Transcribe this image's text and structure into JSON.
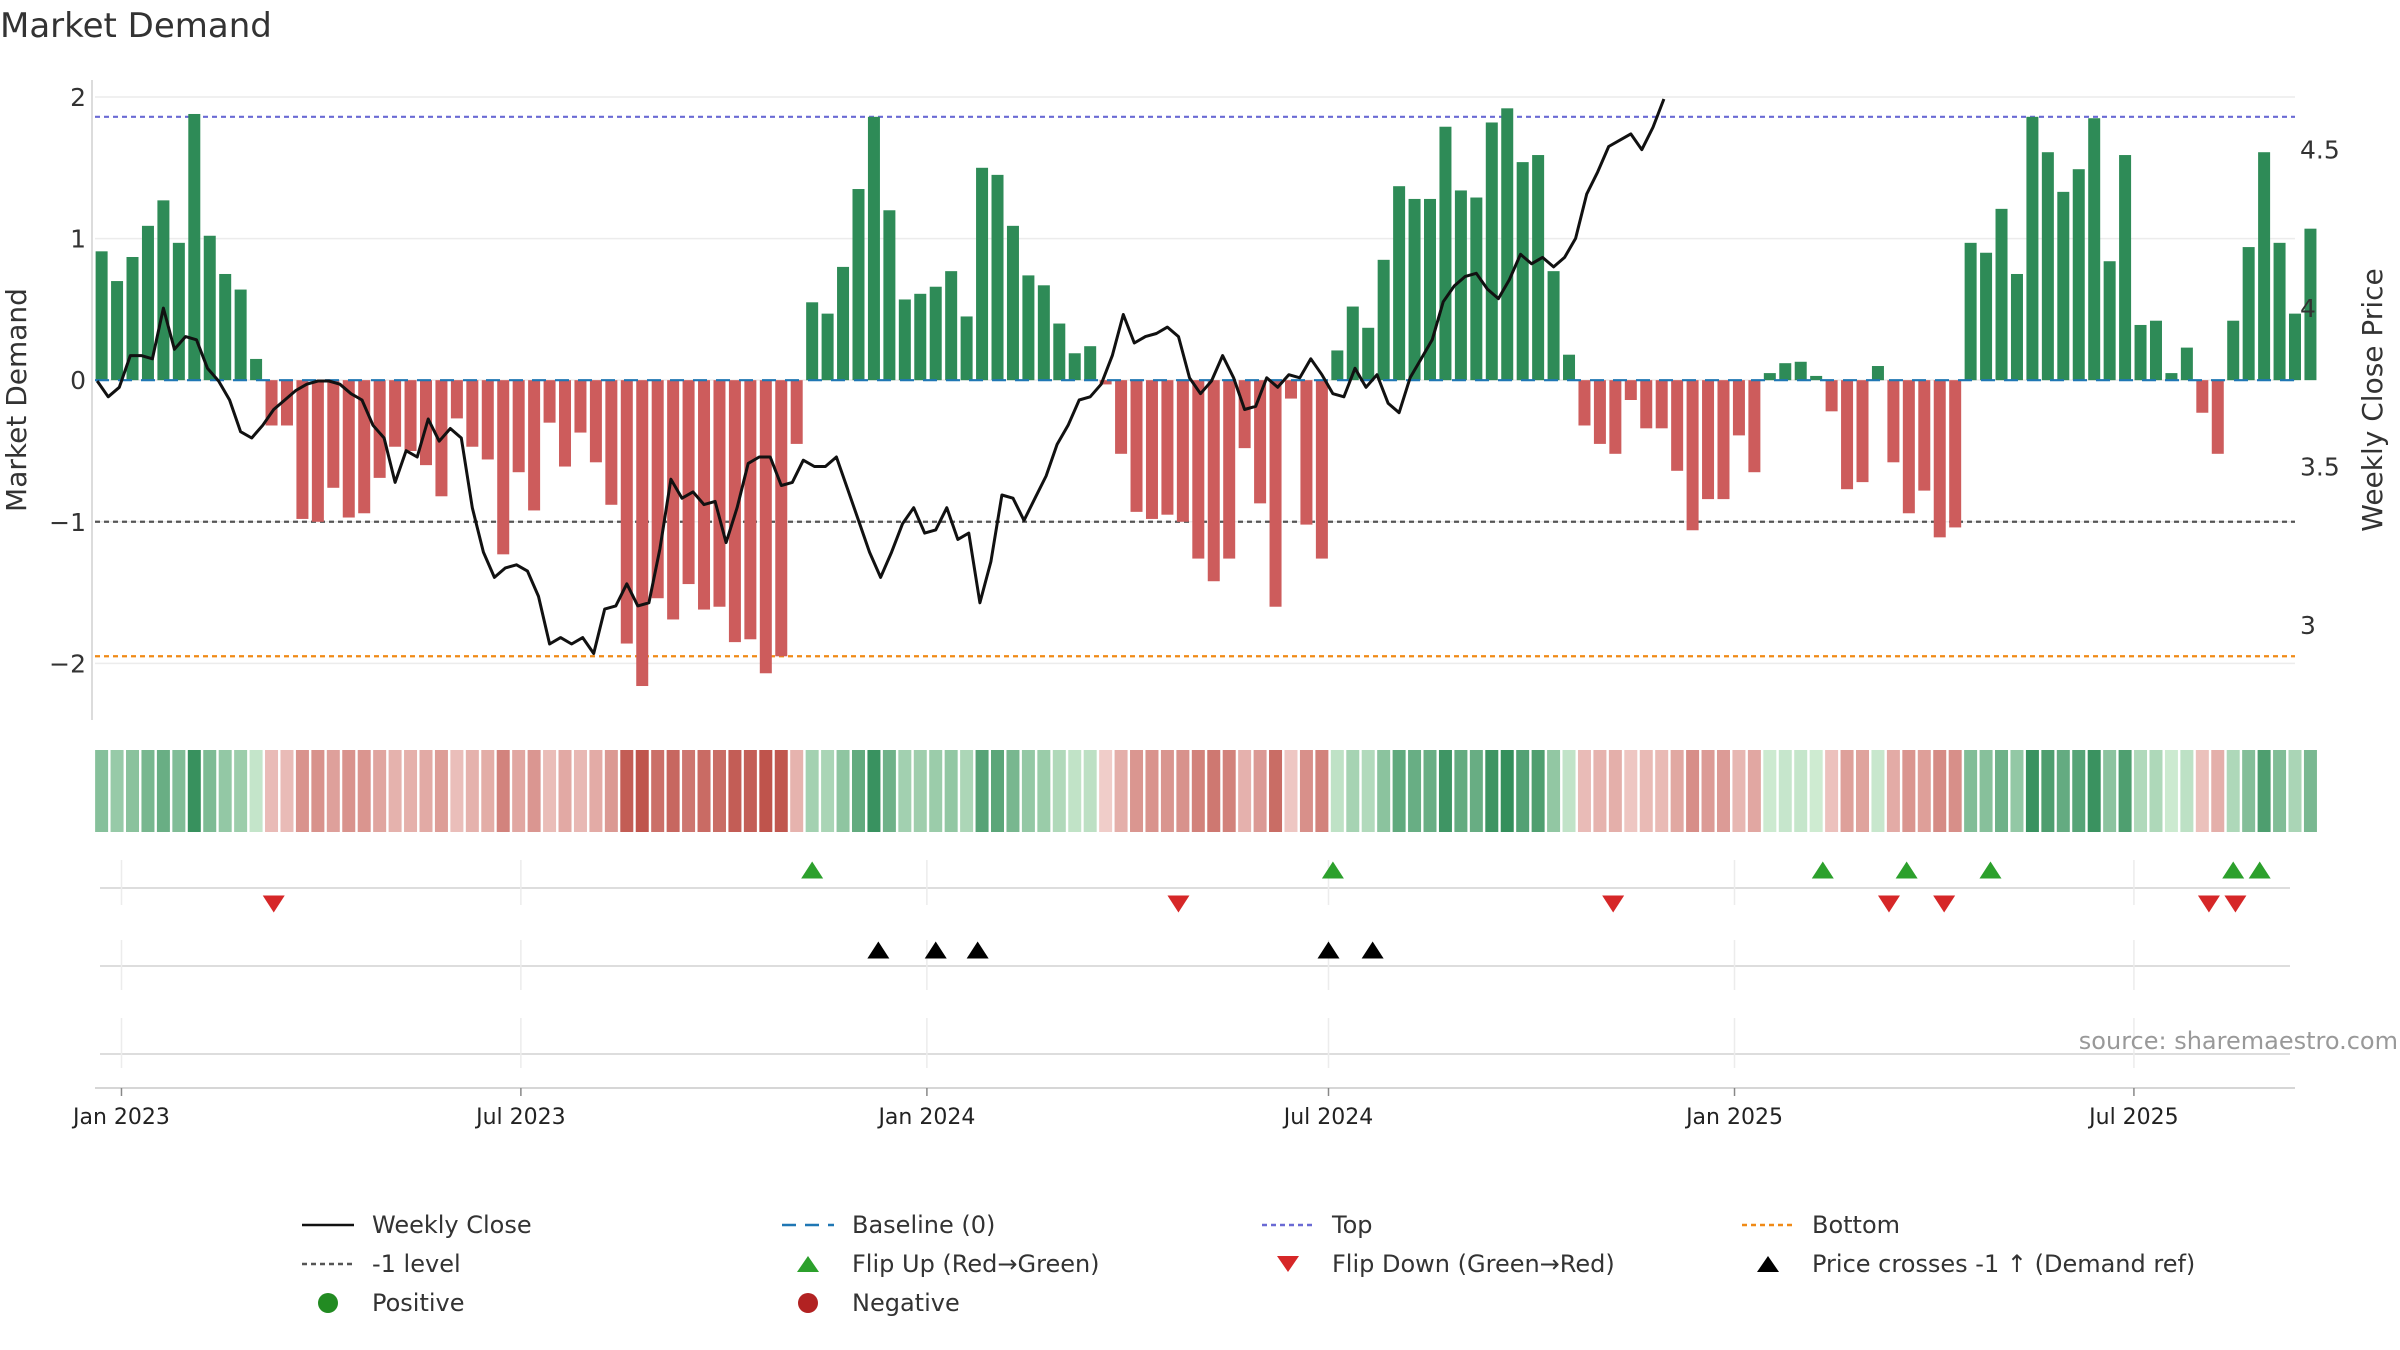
{
  "chart_data": {
    "type": "bar",
    "title": "Market Demand",
    "ylabel": "Market Demand",
    "y2label": "Weekly Close Price",
    "ylim": [
      -2.4,
      2.12
    ],
    "y2lim": [
      2.7,
      4.72
    ],
    "yticks": [
      2,
      1,
      0,
      -1,
      -2
    ],
    "ytick_labels": [
      "2",
      "1",
      "0",
      "−1",
      "−2"
    ],
    "y2ticks": [
      4.5,
      4,
      3.5,
      3
    ],
    "y2tick_labels": [
      "4.5",
      "4",
      "3.5",
      "3"
    ],
    "x_start": "2022-12-20",
    "x_end": "2025-09-12",
    "bar_dates_start": "2022-12-23",
    "bar_interval_days": 7,
    "xticks": [
      {
        "date": "2023-01-01",
        "label": "Jan 2023"
      },
      {
        "date": "2023-07-01",
        "label": "Jul 2023"
      },
      {
        "date": "2024-01-01",
        "label": "Jan 2024"
      },
      {
        "date": "2024-07-01",
        "label": "Jul 2024"
      },
      {
        "date": "2025-01-01",
        "label": "Jan 2025"
      },
      {
        "date": "2025-07-01",
        "label": "Jul 2025"
      }
    ],
    "reference_lines": {
      "top": 1.86,
      "bottom": -1.95,
      "minus_one": -1,
      "baseline": 0
    },
    "demand": [
      0.91,
      0.7,
      0.87,
      1.09,
      1.27,
      0.97,
      1.88,
      1.02,
      0.75,
      0.64,
      0.15,
      -0.32,
      -0.32,
      -0.98,
      -1.0,
      -0.76,
      -0.97,
      -0.94,
      -0.69,
      -0.47,
      -0.5,
      -0.6,
      -0.82,
      -0.27,
      -0.47,
      -0.56,
      -1.23,
      -0.65,
      -0.92,
      -0.3,
      -0.61,
      -0.37,
      -0.58,
      -0.88,
      -1.86,
      -2.16,
      -1.54,
      -1.69,
      -1.44,
      -1.62,
      -1.6,
      -1.85,
      -1.83,
      -2.07,
      -1.95,
      -0.45,
      0.55,
      0.47,
      0.8,
      1.35,
      1.86,
      1.2,
      0.57,
      0.61,
      0.66,
      0.77,
      0.45,
      1.5,
      1.45,
      1.09,
      0.74,
      0.67,
      0.4,
      0.19,
      0.24,
      -0.03,
      -0.52,
      -0.93,
      -0.98,
      -0.95,
      -1.0,
      -1.26,
      -1.42,
      -1.26,
      -0.48,
      -0.87,
      -1.6,
      -0.13,
      -1.02,
      -1.26,
      0.21,
      0.52,
      0.37,
      0.85,
      1.37,
      1.28,
      1.28,
      1.79,
      1.34,
      1.29,
      1.82,
      1.92,
      1.54,
      1.59,
      0.77,
      0.18,
      -0.32,
      -0.45,
      -0.52,
      -0.14,
      -0.34,
      -0.34,
      -0.64,
      -1.06,
      -0.84,
      -0.84,
      -0.39,
      -0.65,
      0.05,
      0.12,
      0.13,
      0.03,
      -0.22,
      -0.77,
      -0.72,
      0.1,
      -0.58,
      -0.94,
      -0.78,
      -1.11,
      -1.04,
      0.97,
      0.9,
      1.21,
      0.75,
      1.86,
      1.61,
      1.33,
      1.49,
      1.85,
      0.84,
      1.59,
      0.39,
      0.42,
      0.05,
      0.23,
      -0.23,
      -0.52,
      0.42,
      0.94,
      1.61,
      0.97,
      0.47,
      1.07
    ],
    "close_dates_start": "2022-12-21",
    "close_interval_days": 5,
    "close": [
      3.77,
      3.72,
      3.75,
      3.85,
      3.85,
      3.84,
      4.0,
      3.87,
      3.91,
      3.9,
      3.81,
      3.77,
      3.71,
      3.61,
      3.59,
      3.63,
      3.68,
      3.71,
      3.74,
      3.76,
      3.77,
      3.77,
      3.76,
      3.73,
      3.71,
      3.63,
      3.59,
      3.45,
      3.55,
      3.53,
      3.65,
      3.58,
      3.62,
      3.59,
      3.37,
      3.23,
      3.15,
      3.18,
      3.19,
      3.17,
      3.09,
      2.94,
      2.96,
      2.94,
      2.96,
      2.91,
      3.05,
      3.06,
      3.13,
      3.06,
      3.07,
      3.24,
      3.46,
      3.4,
      3.42,
      3.38,
      3.39,
      3.26,
      3.37,
      3.51,
      3.53,
      3.53,
      3.44,
      3.45,
      3.52,
      3.5,
      3.5,
      3.53,
      3.43,
      3.33,
      3.23,
      3.15,
      3.23,
      3.32,
      3.37,
      3.29,
      3.3,
      3.37,
      3.27,
      3.29,
      3.07,
      3.2,
      3.41,
      3.4,
      3.33,
      3.4,
      3.47,
      3.57,
      3.63,
      3.71,
      3.72,
      3.76,
      3.85,
      3.98,
      3.89,
      3.91,
      3.92,
      3.94,
      3.91,
      3.78,
      3.73,
      3.77,
      3.85,
      3.78,
      3.68,
      3.69,
      3.78,
      3.75,
      3.79,
      3.78,
      3.84,
      3.79,
      3.73,
      3.72,
      3.81,
      3.75,
      3.79,
      3.7,
      3.67,
      3.78,
      3.84,
      3.9,
      4.02,
      4.07,
      4.1,
      4.11,
      4.06,
      4.03,
      4.09,
      4.17,
      4.14,
      4.16,
      4.13,
      4.16,
      4.22,
      4.36,
      4.43,
      4.51,
      4.53,
      4.55,
      4.5,
      4.57,
      4.66
    ],
    "flip_up_dates": [
      "2023-11-10",
      "2024-07-03",
      "2025-02-10",
      "2025-03-20",
      "2025-04-27",
      "2025-08-15",
      "2025-08-27"
    ],
    "flip_down_dates": [
      "2023-03-11",
      "2024-04-24",
      "2024-11-07",
      "2025-03-12",
      "2025-04-06",
      "2025-08-04",
      "2025-08-16"
    ],
    "price_cross_dates": [
      "2023-12-10",
      "2024-01-05",
      "2024-01-24",
      "2024-07-01",
      "2024-07-21"
    ],
    "source": "source: sharemaestro.com",
    "legend": [
      {
        "label": "Weekly Close",
        "kind": "line",
        "color": "#111111",
        "dash": ""
      },
      {
        "label": "Baseline (0)",
        "kind": "line",
        "color": "#1f77b4",
        "dash": "14,9"
      },
      {
        "label": "Top",
        "kind": "line",
        "color": "#6a6ad4",
        "dash": "5,4"
      },
      {
        "label": "Bottom",
        "kind": "line",
        "color": "#f08a16",
        "dash": "5,4"
      },
      {
        "label": "-1 level",
        "kind": "line",
        "color": "#555555",
        "dash": "5,4"
      },
      {
        "label": "Flip Up (Red→Green)",
        "kind": "up",
        "color": "#2ca02c",
        "dash": ""
      },
      {
        "label": "Flip Down (Green→Red)",
        "kind": "down",
        "color": "#d62728",
        "dash": ""
      },
      {
        "label": "Price crosses -1 ↑ (Demand ref)",
        "kind": "up",
        "color": "#000000",
        "dash": ""
      },
      {
        "label": "Positive",
        "kind": "dot",
        "color": "#228b22",
        "dash": ""
      },
      {
        "label": "Negative",
        "kind": "dot",
        "color": "#b22222",
        "dash": ""
      }
    ],
    "colors": {
      "positive_bar": "#2e8b57",
      "negative_bar": "#cd5c5c",
      "price": "#111111",
      "grid": "#ececec",
      "axis": "#d0d0d0"
    }
  }
}
